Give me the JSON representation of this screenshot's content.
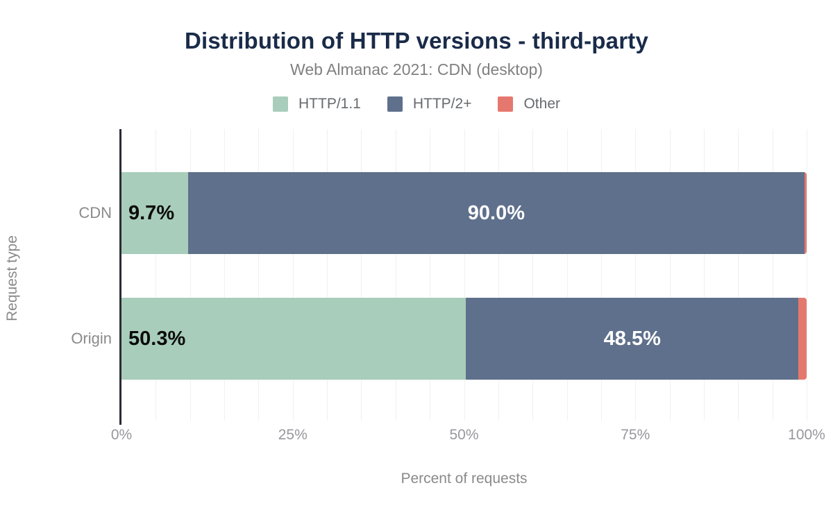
{
  "chart_data": {
    "type": "bar",
    "orientation": "horizontal",
    "stacked": true,
    "title": "Distribution of HTTP versions - third-party",
    "subtitle": "Web Almanac 2021: CDN (desktop)",
    "categories": [
      "CDN",
      "Origin"
    ],
    "series": [
      {
        "name": "HTTP/1.1",
        "color": "#a8cdbb",
        "values": [
          9.7,
          50.3
        ],
        "labels": [
          "9.7%",
          "50.3%"
        ],
        "label_color": "#0b0b0b",
        "label_align": "start"
      },
      {
        "name": "HTTP/2+",
        "color": "#5f708c",
        "values": [
          90.0,
          48.5
        ],
        "labels": [
          "90.0%",
          "48.5%"
        ],
        "label_color": "#ffffff",
        "label_align": "center"
      },
      {
        "name": "Other",
        "color": "#e5786e",
        "values": [
          0.3,
          1.2
        ],
        "labels": [
          "",
          ""
        ],
        "label_color": "#ffffff",
        "label_align": "center"
      }
    ],
    "xlabel": "Percent of requests",
    "ylabel": "Request type",
    "x_ticks": [
      {
        "value": 0,
        "label": "0%"
      },
      {
        "value": 25,
        "label": "25%"
      },
      {
        "value": 50,
        "label": "50%"
      },
      {
        "value": 75,
        "label": "75%"
      },
      {
        "value": 100,
        "label": "100%"
      }
    ],
    "xlim": [
      0,
      100
    ],
    "gridline_step": 5,
    "legend_position": "top",
    "colors": {
      "title": "#1a2b49",
      "axis_line": "#2b2b33",
      "gridline": "#f0f0f0",
      "tick_text": "#97979d",
      "axis_title_text": "#8a8a8a"
    }
  }
}
